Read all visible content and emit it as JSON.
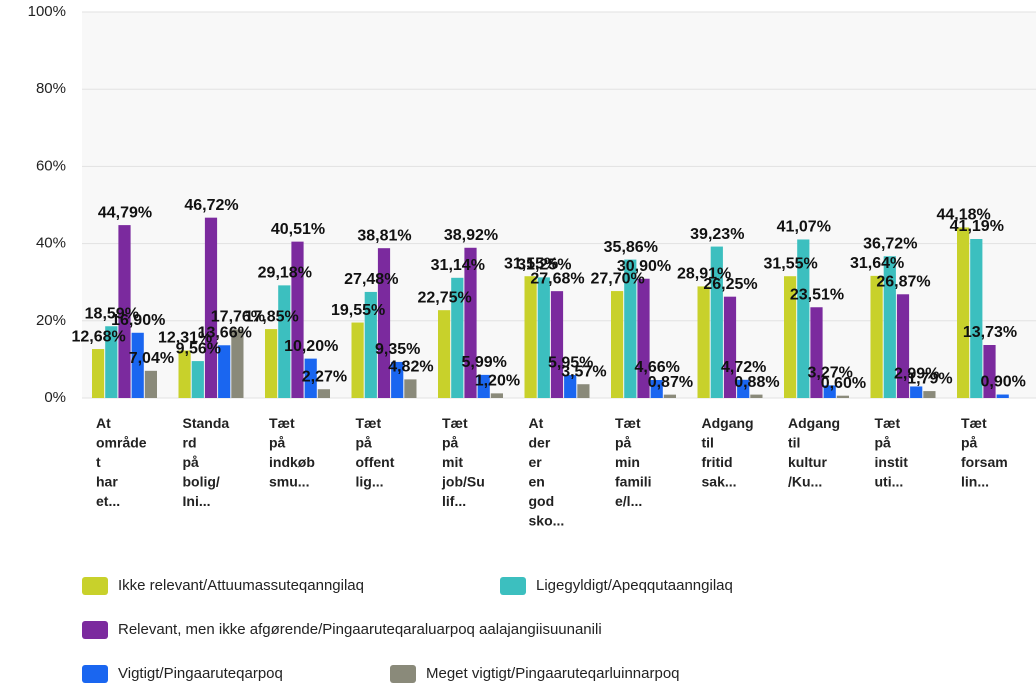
{
  "chart_data": {
    "type": "bar",
    "categories": [
      "At området har et...",
      "Standard på bolig/Ini...",
      "Tæt på indkøbsmu...",
      "Tæt på offentlig...",
      "Tæt på mit job/Sulif...",
      "At der er en god sko...",
      "Tæt på min familie/l...",
      "Adgang til fritidsak...",
      "Adgang til kultur/Ku...",
      "Tæt på instituti...",
      "Tæt på forsamlin..."
    ],
    "series": [
      {
        "name": "Ikke relevant/Attuumassuteqanngilaq",
        "color": "#c8d12b",
        "values": [
          12.68,
          12.31,
          17.85,
          19.55,
          22.75,
          31.55,
          27.7,
          28.91,
          31.55,
          31.64,
          44.18
        ],
        "value_labels": [
          "12,68%",
          "12,31%",
          "17,85%",
          "19,55%",
          "22,75%",
          "31,55%",
          "27,70%",
          "28,91%",
          "31,55%",
          "31,64%",
          "44,18%"
        ]
      },
      {
        "name": "Ligegyldigt/Apeqqutaanngilaq",
        "color": "#3cbfbf",
        "values": [
          18.59,
          9.56,
          29.18,
          27.48,
          31.14,
          31.25,
          35.86,
          39.23,
          41.07,
          36.72,
          41.19
        ],
        "value_labels": [
          "18,59%",
          "9,56%",
          "29,18%",
          "27,48%",
          "31,14%",
          "31,25%",
          "35,86%",
          "39,23%",
          "41,07%",
          "36,72%",
          "41,19%"
        ]
      },
      {
        "name": "Relevant, men ikke afgørende/Pingaaruteqaraluarpoq aalajangiisuunanili",
        "color": "#7b2a9e",
        "values": [
          44.79,
          46.72,
          40.51,
          38.81,
          38.92,
          27.68,
          30.9,
          26.25,
          23.51,
          26.87,
          13.73
        ],
        "value_labels": [
          "44,79%",
          "46,72%",
          "40,51%",
          "38,81%",
          "38,92%",
          "27,68%",
          "30,90%",
          "26,25%",
          "23,51%",
          "26,87%",
          "13,73%"
        ]
      },
      {
        "name": "Vigtigt/Pingaaruteqarpoq",
        "color": "#1a66f0",
        "values": [
          16.9,
          13.66,
          10.2,
          9.35,
          5.99,
          5.95,
          4.66,
          4.72,
          3.27,
          2.99,
          0.9
        ],
        "value_labels": [
          "16,90%",
          "13,66%",
          "10,20%",
          "9,35%",
          "5,99%",
          "5,95%",
          "4,66%",
          "4,72%",
          "3,27%",
          "2,99%",
          "0,90%"
        ]
      },
      {
        "name": "Meget vigtigt/Pingaaruteqarluinnarpoq",
        "color": "#8a8a7a",
        "values": [
          7.04,
          17.76,
          2.27,
          4.82,
          1.2,
          3.57,
          0.87,
          0.88,
          0.6,
          1.79,
          null
        ],
        "value_labels": [
          "7,04%",
          "17,76%",
          "2,27%",
          "4,82%",
          "1,20%",
          "3,57%",
          "0,87%",
          "0,88%",
          "0,60%",
          "1,79%",
          null
        ]
      }
    ],
    "ylim": [
      0,
      100
    ],
    "yticks": [
      {
        "value": 0,
        "label": "0%"
      },
      {
        "value": 20,
        "label": "20%"
      },
      {
        "value": 40,
        "label": "40%"
      },
      {
        "value": 60,
        "label": "60%"
      },
      {
        "value": 80,
        "label": "80%"
      },
      {
        "value": 100,
        "label": "100%"
      }
    ],
    "grid": true
  }
}
